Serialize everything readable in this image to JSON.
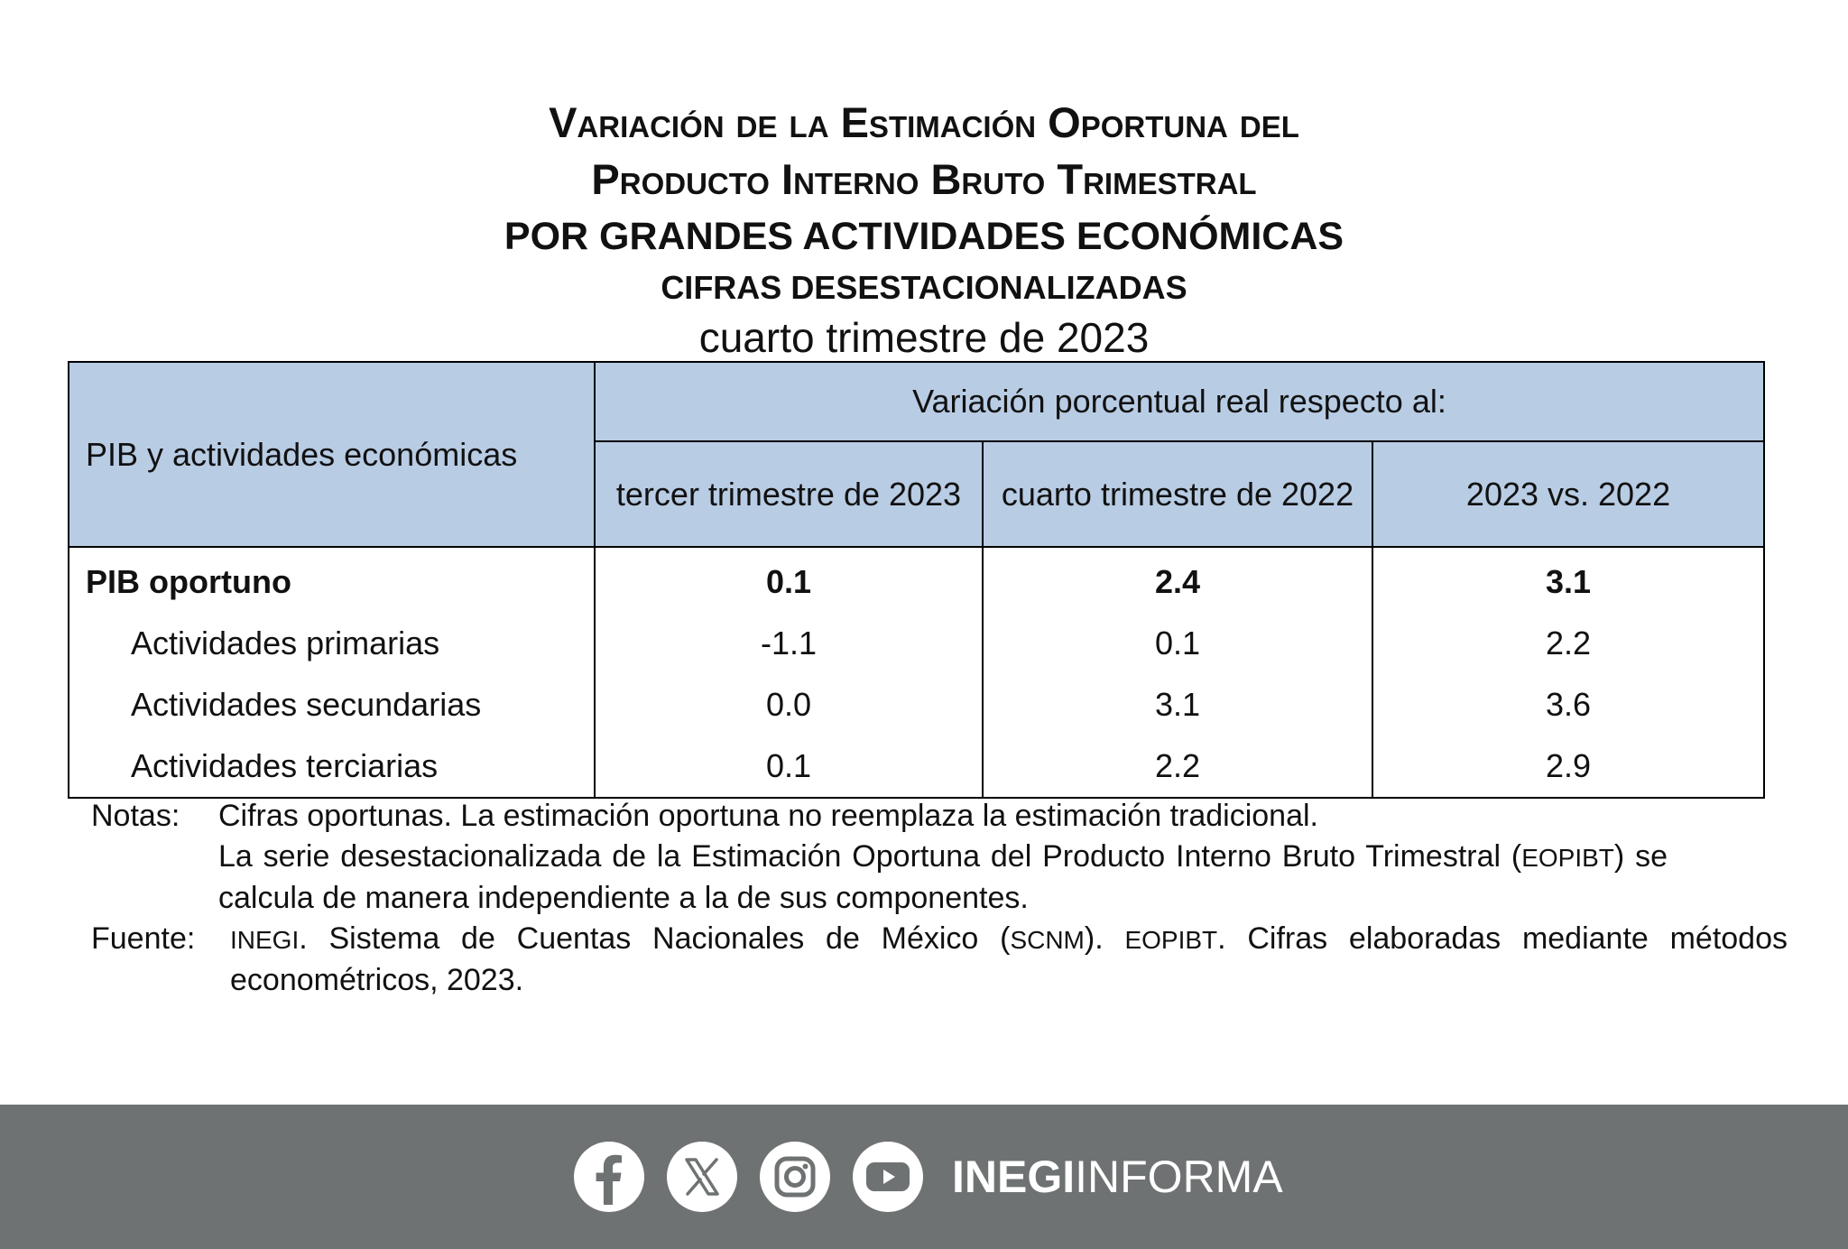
{
  "title": {
    "line1": "Variación de la Estimación Oportuna del",
    "line2": "Producto Interno Bruto Trimestral",
    "line3": "POR GRANDES ACTIVIDADES ECONÓMICAS",
    "line4": "CIFRAS DESESTACIONALIZADAS",
    "line5": "cuarto trimestre de 2023"
  },
  "table": {
    "row_header": "PIB y actividades económicas",
    "group_header": "Variación porcentual real respecto al:",
    "columns": [
      "tercer trimestre de 2023",
      "cuarto trimestre de 2022",
      "2023 vs. 2022"
    ],
    "rows": [
      {
        "label": "PIB oportuno",
        "values": [
          "0.1",
          "2.4",
          "3.1"
        ]
      },
      {
        "label": "Actividades primarias",
        "values": [
          "-1.1",
          "0.1",
          "2.2"
        ]
      },
      {
        "label": "Actividades secundarias",
        "values": [
          "0.0",
          "3.1",
          "3.6"
        ]
      },
      {
        "label": "Actividades terciarias",
        "values": [
          "0.1",
          "2.2",
          "2.9"
        ]
      }
    ]
  },
  "notes": {
    "notas_label": "Notas:",
    "nota1": "Cifras oportunas. La estimación oportuna no reemplaza la estimación tradicional.",
    "nota2_part1": "La serie desestacionalizada de la Estimación Oportuna del Producto Interno Bruto Trimestral (",
    "nota2_abbr": "EOPIBT",
    "nota2_part2": ") se calcula de manera independiente a la de sus componentes.",
    "fuente_label": "Fuente:",
    "fuente_abbr1": "INEGI",
    "fuente_part1": ". Sistema de Cuentas Nacionales de México (",
    "fuente_abbr2": "SCNM",
    "fuente_part2": "). ",
    "fuente_abbr3": "EOPIBT",
    "fuente_part3": ". Cifras elaboradas mediante métodos econométricos, 2023."
  },
  "footer": {
    "brand_bold": "INEGI",
    "brand_light": "INFORMA",
    "icons": [
      "facebook-icon",
      "x-icon",
      "instagram-icon",
      "youtube-icon"
    ],
    "background_color": "#6f7273",
    "header_color": "#b8cce4"
  }
}
